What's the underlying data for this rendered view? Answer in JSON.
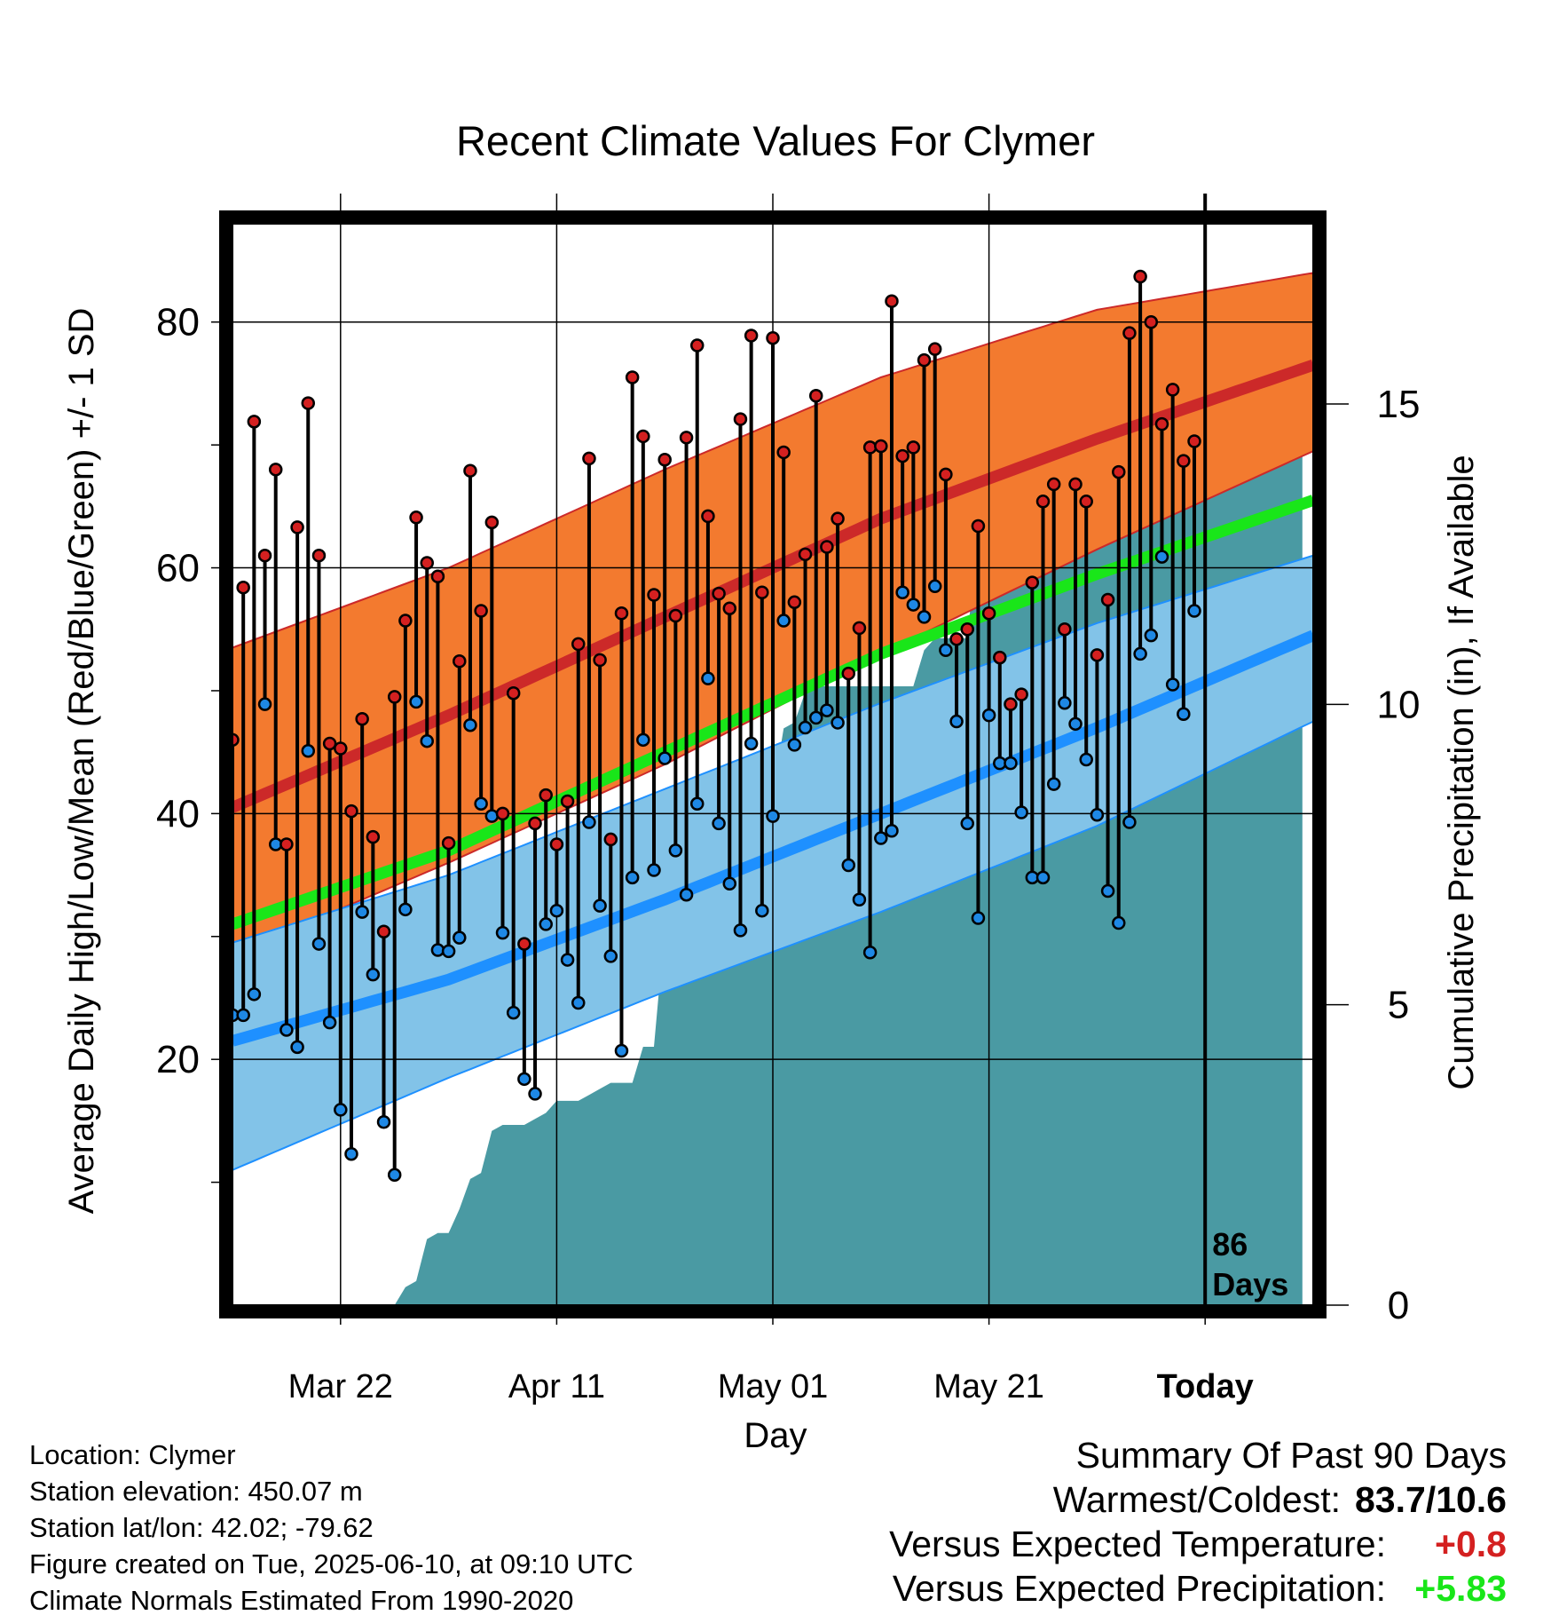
{
  "chart_data": {
    "type": "line",
    "title": "Recent Climate Values For Clymer",
    "xlabel": "Day",
    "ylabel": "Average Daily High/Low/Mean (Red/Blue/Green) +/- 1 SD",
    "y2label": "Cumulative Precipitation (in), If Available",
    "x_ticks": [
      "Mar 22",
      "Apr 11",
      "May 01",
      "May 21",
      "Today"
    ],
    "ylim": [
      0,
      88
    ],
    "y_ticks": [
      20,
      40,
      60,
      80
    ],
    "y2lim": [
      0,
      18
    ],
    "y2_ticks": [
      0,
      5,
      10,
      15
    ],
    "days_marker_label": "86\nDays",
    "grid": true,
    "colors": {
      "high_band": "#f37a2f",
      "high_line": "#cc2929",
      "low_band": "#82c3e8",
      "low_line": "#1e90ff",
      "mean_line": "#19e619",
      "precip": "#4a9aa3",
      "high_dot": "#d42020",
      "low_dot": "#1e88e5"
    },
    "normals": {
      "x": [
        0,
        20,
        40,
        60,
        80,
        100
      ],
      "high_mean": [
        40.5,
        48.0,
        56.0,
        64.0,
        70.5,
        76.5
      ],
      "high_sd_upper": [
        53.5,
        60.0,
        68.0,
        75.5,
        81.0,
        84.0
      ],
      "high_sd_lower": [
        28.5,
        36.0,
        44.0,
        53.0,
        61.5,
        69.5
      ],
      "mean": [
        31.0,
        37.0,
        45.0,
        53.0,
        59.5,
        65.5
      ],
      "low_mean": [
        21.5,
        26.5,
        33.0,
        40.0,
        47.0,
        54.5
      ],
      "low_sd_upper": [
        29.5,
        35.0,
        42.0,
        49.0,
        55.5,
        61.0
      ],
      "low_sd_lower": [
        11.0,
        18.5,
        25.5,
        32.0,
        39.0,
        47.5
      ]
    },
    "daily": {
      "day": [
        0,
        1,
        2,
        3,
        4,
        5,
        6,
        7,
        8,
        9,
        10,
        11,
        12,
        13,
        14,
        15,
        16,
        17,
        18,
        19,
        20,
        21,
        22,
        23,
        24,
        25,
        26,
        27,
        28,
        29,
        30,
        31,
        32,
        33,
        34,
        35,
        36,
        37,
        38,
        39,
        40,
        41,
        42,
        43,
        44,
        45,
        46,
        47,
        48,
        49,
        50,
        51,
        52,
        53,
        54,
        55,
        56,
        57,
        58,
        59,
        60,
        61,
        62,
        63,
        64,
        65,
        66,
        67,
        68,
        69,
        70,
        71,
        72,
        73,
        74,
        75,
        76,
        77,
        78,
        79,
        80,
        81,
        82,
        83,
        84,
        85,
        86,
        87,
        88,
        89
      ],
      "high": [
        46.0,
        58.4,
        71.9,
        61.0,
        68.0,
        37.5,
        63.3,
        73.4,
        61.0,
        45.7,
        45.3,
        40.2,
        47.7,
        38.1,
        30.4,
        49.5,
        55.7,
        64.1,
        60.4,
        59.3,
        37.6,
        52.4,
        67.9,
        56.5,
        63.7,
        40.0,
        49.8,
        29.4,
        39.2,
        41.5,
        37.5,
        41.0,
        53.8,
        68.9,
        52.5,
        37.9,
        56.3,
        75.5,
        70.7,
        57.8,
        68.8,
        56.1,
        70.6,
        78.1,
        64.2,
        57.9,
        56.7,
        72.1,
        78.9,
        58.0,
        78.7,
        69.4,
        57.2,
        61.1,
        74.0,
        61.7,
        64.0,
        51.4,
        55.1,
        69.8,
        69.9,
        81.7,
        69.1,
        69.8,
        76.9,
        77.8,
        67.6,
        54.2,
        55.0,
        63.4,
        56.3,
        52.7,
        48.9,
        49.7,
        58.8,
        65.4,
        66.8,
        55.0,
        66.8,
        65.4,
        52.9,
        57.4,
        67.8,
        79.1,
        83.7,
        80.0,
        71.7,
        74.5,
        68.7,
        70.3
      ],
      "low": [
        23.6,
        23.6,
        25.3,
        48.9,
        37.5,
        22.4,
        21.0,
        45.1,
        29.4,
        23.0,
        15.9,
        12.3,
        32.0,
        26.9,
        14.9,
        10.6,
        32.2,
        49.1,
        45.9,
        28.9,
        28.8,
        29.9,
        47.2,
        40.8,
        39.8,
        30.3,
        23.8,
        18.4,
        17.2,
        31.0,
        32.1,
        28.1,
        24.6,
        39.3,
        32.5,
        28.4,
        20.7,
        34.8,
        46.0,
        35.4,
        44.5,
        37.0,
        33.4,
        40.8,
        51.0,
        39.2,
        34.3,
        30.5,
        45.7,
        32.1,
        39.8,
        55.7,
        45.6,
        47.0,
        47.8,
        48.4,
        47.4,
        35.8,
        33.0,
        28.7,
        38.0,
        38.6,
        58.0,
        57.0,
        56.0,
        58.5,
        53.3,
        47.5,
        39.2,
        31.5,
        48.0,
        44.1,
        44.1,
        40.1,
        34.8,
        34.8,
        42.4,
        49.0,
        47.3,
        44.4,
        39.9,
        33.7,
        31.1,
        39.3,
        53.0,
        54.5,
        60.9,
        50.5,
        48.1,
        56.5
      ]
    },
    "precip": {
      "day": [
        15,
        16,
        17,
        18,
        19,
        20,
        21,
        22,
        23,
        24,
        25,
        26,
        27,
        28,
        29,
        30,
        31,
        32,
        33,
        34,
        35,
        36,
        37,
        38,
        39,
        40,
        41,
        42,
        43,
        44,
        45,
        46,
        47,
        48,
        49,
        50,
        51,
        52,
        53,
        54,
        55,
        56,
        57,
        58,
        59,
        60,
        61,
        62,
        63,
        64,
        65,
        66,
        67,
        68,
        69,
        70,
        71,
        72,
        73,
        74,
        75,
        76,
        77,
        78,
        79,
        80,
        81,
        82,
        83,
        84,
        85,
        86,
        87,
        88,
        89,
        90,
        91,
        92,
        93,
        94,
        95,
        96,
        97,
        98,
        99
      ],
      "cum_in": [
        0.0,
        0.3,
        0.4,
        1.1,
        1.2,
        1.2,
        1.6,
        2.1,
        2.2,
        2.9,
        3.0,
        3.0,
        3.0,
        3.1,
        3.2,
        3.4,
        3.4,
        3.4,
        3.5,
        3.6,
        3.7,
        3.7,
        3.7,
        4.3,
        4.3,
        6.3,
        6.3,
        6.4,
        7.3,
        7.3,
        7.3,
        7.3,
        7.3,
        7.4,
        7.8,
        8.5,
        9.6,
        9.7,
        10.2,
        10.3,
        10.3,
        10.3,
        10.3,
        10.3,
        10.3,
        10.3,
        10.3,
        10.3,
        10.3,
        10.9,
        11.1,
        11.1,
        11.1,
        11.1,
        12.9,
        13.3,
        13.4,
        13.5,
        13.5,
        13.5,
        13.5,
        13.8,
        13.8,
        13.9,
        14.0,
        14.0,
        14.0,
        14.0,
        14.0,
        14.0,
        14.1,
        14.2,
        14.2,
        14.4,
        15.0,
        15.0,
        15.0,
        15.0,
        15.0,
        15.0,
        15.0,
        15.0,
        15.0,
        15.0,
        15.0
      ]
    },
    "today_day": 90,
    "x_tick_days": [
      10,
      30,
      50,
      70,
      90
    ],
    "xlim": [
      0,
      100
    ]
  },
  "info": {
    "location": "Location: Clymer",
    "elevation": "Station elevation: 450.07 m",
    "latlon": "Station lat/lon: 42.02; -79.62",
    "created": "Figure created on Tue, 2025-06-10, at 09:10 UTC",
    "normals": "Climate Normals Estimated From 1990-2020"
  },
  "summary": {
    "heading": "Summary Of Past 90 Days",
    "warm_cold_label": "Warmest/Coldest:",
    "warm_cold_value": "83.7/10.6",
    "temp_label": "Versus Expected Temperature:",
    "temp_value": "+0.8",
    "temp_color": "#d42020",
    "precip_label": "Versus Expected Precipitation:",
    "precip_value": "+5.83",
    "precip_color": "#19e619"
  }
}
